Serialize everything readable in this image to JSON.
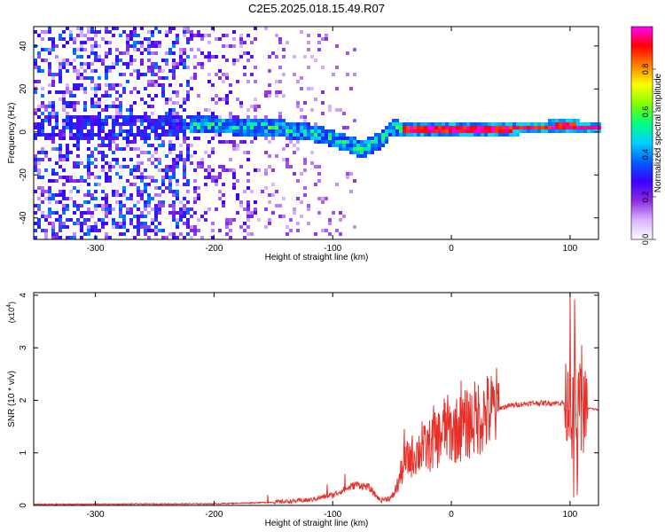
{
  "title": "C2E5.2025.018.15.49.R07",
  "colors": {
    "background": "#ffffff",
    "axis": "#000000",
    "snr_line": "#e8302a",
    "colormap": [
      "#ffffff",
      "#d9b3ff",
      "#8a2be2",
      "#3a00ff",
      "#0060ff",
      "#00d0ff",
      "#00ff80",
      "#80ff00",
      "#ffff00",
      "#ff8000",
      "#ff0000",
      "#ff00ff"
    ]
  },
  "chart_data": [
    {
      "type": "heatmap",
      "description": "spectrogram",
      "xlabel": "Height of straight line (km)",
      "ylabel": "Frequency (Hz)",
      "xlim": [
        -352,
        124
      ],
      "ylim": [
        -50,
        49
      ],
      "xticks": [
        -300,
        -200,
        -100,
        0,
        100
      ],
      "yticks": [
        -40,
        -20,
        0,
        20,
        40
      ],
      "colorbar": {
        "label": "Normalized spectral amplitude",
        "range": [
          0,
          1
        ],
        "ticks": [
          "0.0",
          "0.2",
          "0.4",
          "0.6",
          "0.8"
        ]
      },
      "regions": [
        {
          "x_range": [
            -352,
            -220
          ],
          "character": "diffuse broadband noise, all frequencies",
          "intensity": 0.25
        },
        {
          "x_range": [
            -220,
            -165
          ],
          "character": "weaker broadband noise",
          "intensity": 0.15
        },
        {
          "x_range": [
            -165,
            -80
          ],
          "character": "sparse faint noise",
          "intensity": 0.08
        },
        {
          "x_range": [
            -220,
            -80
          ],
          "character": "ridge near 0 Hz drifting from +3 Hz to -8 Hz",
          "intensity": 0.55
        },
        {
          "x_range": [
            -40,
            124
          ],
          "character": "strong narrow line at ~1.5 Hz",
          "intensity": 0.95
        }
      ],
      "ridge": {
        "x": [
          -352,
          -300,
          -250,
          -220,
          -200,
          -150,
          -120,
          -100,
          -85,
          -75,
          -60,
          -50,
          -40,
          -30,
          -20,
          0,
          50,
          90,
          100,
          110,
          124
        ],
        "y": [
          2,
          2,
          2,
          3,
          3,
          2,
          0,
          -3,
          -6,
          -8,
          -4,
          2,
          1,
          1.5,
          1.5,
          1.5,
          1.5,
          2.5,
          3,
          2,
          2
        ]
      }
    },
    {
      "type": "line",
      "xlabel": "Height of straight line (km)",
      "ylabel": "SNR (10 * v/v)",
      "scale_note": "(x10",
      "scale_exp": "4",
      "xlim": [
        -352,
        124
      ],
      "ylim": [
        0,
        4.05
      ],
      "xticks": [
        -300,
        -200,
        -100,
        0,
        100
      ],
      "yticks": [
        0,
        1,
        2,
        3,
        4
      ],
      "series": [
        {
          "envelope_x": [
            -352,
            -200,
            -150,
            -120,
            -100,
            -90,
            -80,
            -70,
            -60,
            -50,
            -45,
            -40,
            -30,
            -20,
            -10,
            -5,
            0,
            10,
            20,
            30,
            40,
            50,
            60,
            70,
            80,
            90,
            95,
            98,
            100,
            102,
            104,
            106,
            108,
            110,
            112,
            115,
            124
          ],
          "envelope_y": [
            0.02,
            0.03,
            0.06,
            0.1,
            0.2,
            0.3,
            0.4,
            0.35,
            0.1,
            0.15,
            0.4,
            0.8,
            1.0,
            1.1,
            1.3,
            1.5,
            1.4,
            1.5,
            1.65,
            1.75,
            1.85,
            1.9,
            1.93,
            1.95,
            1.95,
            1.95,
            1.95,
            1.9,
            2.2,
            1.5,
            2.5,
            1.2,
            2.2,
            1.6,
            1.85,
            1.85,
            1.82
          ],
          "spikes": [
            {
              "x": -155,
              "y": 0.2
            },
            {
              "x": -105,
              "y": 0.4
            },
            {
              "x": -90,
              "y": 0.6
            },
            {
              "x": -40,
              "y": 1.45
            },
            {
              "x": -25,
              "y": 1.6
            },
            {
              "x": -15,
              "y": 1.9
            },
            {
              "x": -5,
              "y": 1.95
            },
            {
              "x": 8,
              "y": 2.38
            },
            {
              "x": 100,
              "y": 4.05
            },
            {
              "x": 104,
              "y": 3.92
            },
            {
              "x": 107,
              "y": 2.4
            },
            {
              "x": 110,
              "y": 3.05
            },
            {
              "x": 103,
              "y": 0.15
            },
            {
              "x": 106,
              "y": 0.2
            }
          ]
        }
      ]
    }
  ]
}
